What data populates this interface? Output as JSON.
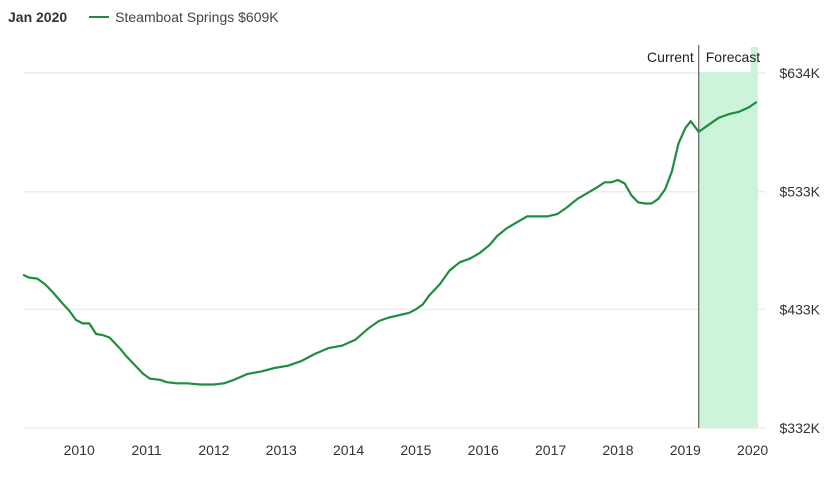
{
  "legend": {
    "date": "Jan 2020",
    "series_label": "Steamboat Springs $609K"
  },
  "colors": {
    "line": "#1e8e3e",
    "forecast_fill": "#cdf3da",
    "grid": "#e6e6e6",
    "divider": "#444444"
  },
  "chart_data": {
    "type": "line",
    "title": "",
    "xlabel": "",
    "ylabel": "",
    "ylim": [
      332,
      634
    ],
    "y_ticks": [
      "$634K",
      "$533K",
      "$433K",
      "$332K"
    ],
    "y_tick_values": [
      634,
      533,
      433,
      332
    ],
    "x_ticks": [
      "2010",
      "2011",
      "2012",
      "2013",
      "2014",
      "2015",
      "2016",
      "2017",
      "2018",
      "2019",
      "2020"
    ],
    "x_tick_values": [
      2010,
      2011,
      2012,
      2013,
      2014,
      2015,
      2016,
      2017,
      2018,
      2019,
      2020
    ],
    "xlim": [
      2009.18,
      2020.08
    ],
    "forecast_start": 2019.2,
    "marker_labels": {
      "current": "Current",
      "forecast": "Forecast"
    },
    "series": [
      {
        "name": "Steamboat Springs",
        "points": [
          [
            2009.18,
            462
          ],
          [
            2009.25,
            460
          ],
          [
            2009.38,
            459
          ],
          [
            2009.5,
            454
          ],
          [
            2009.6,
            448
          ],
          [
            2009.75,
            438
          ],
          [
            2009.85,
            432
          ],
          [
            2009.95,
            424
          ],
          [
            2010.05,
            421
          ],
          [
            2010.15,
            421
          ],
          [
            2010.25,
            412
          ],
          [
            2010.35,
            411
          ],
          [
            2010.45,
            409
          ],
          [
            2010.6,
            400
          ],
          [
            2010.7,
            393
          ],
          [
            2010.85,
            384
          ],
          [
            2010.95,
            378
          ],
          [
            2011.05,
            374
          ],
          [
            2011.2,
            373
          ],
          [
            2011.3,
            371
          ],
          [
            2011.45,
            370
          ],
          [
            2011.6,
            370
          ],
          [
            2011.8,
            369
          ],
          [
            2012.0,
            369
          ],
          [
            2012.15,
            370
          ],
          [
            2012.3,
            373
          ],
          [
            2012.5,
            378
          ],
          [
            2012.7,
            380
          ],
          [
            2012.9,
            383
          ],
          [
            2013.1,
            385
          ],
          [
            2013.3,
            389
          ],
          [
            2013.5,
            395
          ],
          [
            2013.7,
            400
          ],
          [
            2013.9,
            402
          ],
          [
            2014.1,
            407
          ],
          [
            2014.3,
            417
          ],
          [
            2014.45,
            423
          ],
          [
            2014.6,
            426
          ],
          [
            2014.75,
            428
          ],
          [
            2014.9,
            430
          ],
          [
            2015.0,
            433
          ],
          [
            2015.1,
            437
          ],
          [
            2015.2,
            445
          ],
          [
            2015.35,
            454
          ],
          [
            2015.5,
            466
          ],
          [
            2015.65,
            473
          ],
          [
            2015.8,
            476
          ],
          [
            2015.95,
            481
          ],
          [
            2016.1,
            488
          ],
          [
            2016.2,
            495
          ],
          [
            2016.35,
            502
          ],
          [
            2016.5,
            507
          ],
          [
            2016.65,
            512
          ],
          [
            2016.8,
            512
          ],
          [
            2016.95,
            512
          ],
          [
            2017.1,
            514
          ],
          [
            2017.25,
            520
          ],
          [
            2017.4,
            527
          ],
          [
            2017.55,
            532
          ],
          [
            2017.7,
            537
          ],
          [
            2017.8,
            541
          ],
          [
            2017.9,
            541
          ],
          [
            2018.0,
            543
          ],
          [
            2018.1,
            540
          ],
          [
            2018.2,
            530
          ],
          [
            2018.3,
            524
          ],
          [
            2018.4,
            523
          ],
          [
            2018.5,
            523
          ],
          [
            2018.6,
            527
          ],
          [
            2018.7,
            535
          ],
          [
            2018.8,
            550
          ],
          [
            2018.9,
            574
          ],
          [
            2019.0,
            587
          ],
          [
            2019.08,
            593
          ],
          [
            2019.2,
            584
          ],
          [
            2019.35,
            590
          ],
          [
            2019.5,
            596
          ],
          [
            2019.65,
            599
          ],
          [
            2019.8,
            601
          ],
          [
            2019.95,
            605
          ],
          [
            2020.05,
            609
          ]
        ]
      }
    ]
  }
}
